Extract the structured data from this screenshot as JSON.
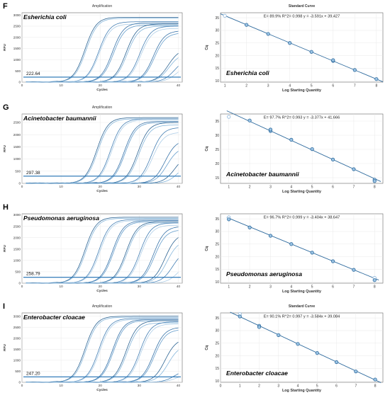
{
  "panels": [
    {
      "letter": "F",
      "organism": "Esherichia coli",
      "amplification": {
        "title": "Amplification",
        "xlabel": "Cycles",
        "ylabel": "RFU",
        "xlim": [
          0,
          41
        ],
        "xticks": [
          0,
          10,
          20,
          30,
          40
        ],
        "ylim": [
          0,
          3100
        ],
        "yticks": [
          0,
          500,
          1000,
          1500,
          2000,
          2500,
          3000
        ],
        "threshold": 222.64,
        "threshold_label": "222.64",
        "curves": [
          {
            "ct": 13.5,
            "plateau": 2900
          },
          {
            "ct": 13.8,
            "plateau": 2850
          },
          {
            "ct": 17.0,
            "plateau": 2700
          },
          {
            "ct": 17.2,
            "plateau": 2600
          },
          {
            "ct": 20.5,
            "plateau": 2650
          },
          {
            "ct": 20.8,
            "plateau": 2550
          },
          {
            "ct": 24.0,
            "plateau": 2600
          },
          {
            "ct": 24.3,
            "plateau": 2500
          },
          {
            "ct": 27.5,
            "plateau": 2500
          },
          {
            "ct": 27.8,
            "plateau": 2400
          },
          {
            "ct": 31.0,
            "plateau": 2300
          },
          {
            "ct": 31.3,
            "plateau": 2200
          },
          {
            "ct": 34.8,
            "plateau": 1500
          },
          {
            "ct": 35.0,
            "plateau": 1300
          },
          {
            "ct": 36.5,
            "plateau": 1100
          },
          {
            "ct": 37.0,
            "plateau": 800
          }
        ]
      },
      "standard_curve": {
        "title": "Standard Curve",
        "xlabel": "Log Starting Quantity",
        "ylabel": "Cq",
        "xlim": [
          0.8,
          8.3
        ],
        "xticks": [
          1,
          2,
          3,
          4,
          5,
          6,
          7,
          8
        ],
        "ylim": [
          9.5,
          37
        ],
        "yticks": [
          10,
          15,
          20,
          25,
          30,
          35
        ],
        "equation": "E= 89.9% R^2= 0.998  y = -3.591x + 39.427",
        "slope": -3.591,
        "intercept": 39.427,
        "line_range": [
          0.8,
          8.3
        ],
        "points": [
          {
            "x": 1,
            "y": 35.8,
            "hollow": true
          },
          {
            "x": 2,
            "y": 32.2
          },
          {
            "x": 3,
            "y": 28.6
          },
          {
            "x": 4,
            "y": 25.0
          },
          {
            "x": 5,
            "y": 21.5
          },
          {
            "x": 6,
            "y": 17.9
          },
          {
            "x": 6,
            "y": 18.2
          },
          {
            "x": 7,
            "y": 14.3
          },
          {
            "x": 8,
            "y": 10.7
          }
        ]
      }
    },
    {
      "letter": "G",
      "organism": "Acinetobacter baumannii",
      "amplification": {
        "title": "Amplification",
        "xlabel": "Cycles",
        "ylabel": "RFU",
        "xlim": [
          0,
          41
        ],
        "xticks": [
          0,
          10,
          20,
          30,
          40
        ],
        "ylim": [
          0,
          2850
        ],
        "yticks": [
          0,
          500,
          1000,
          1500,
          2000,
          2500
        ],
        "threshold": 297.38,
        "threshold_label": "297.38",
        "curves": [
          {
            "ct": 16.5,
            "plateau": 2700
          },
          {
            "ct": 16.8,
            "plateau": 2650
          },
          {
            "ct": 20.0,
            "plateau": 2650
          },
          {
            "ct": 20.3,
            "plateau": 2600
          },
          {
            "ct": 23.5,
            "plateau": 2550
          },
          {
            "ct": 23.8,
            "plateau": 2500
          },
          {
            "ct": 27.0,
            "plateau": 2500
          },
          {
            "ct": 27.3,
            "plateau": 2400
          },
          {
            "ct": 30.5,
            "plateau": 2300
          },
          {
            "ct": 30.8,
            "plateau": 2100
          },
          {
            "ct": 34.0,
            "plateau": 1800
          },
          {
            "ct": 34.5,
            "plateau": 1500
          },
          {
            "ct": 36.5,
            "plateau": 1200
          },
          {
            "ct": 37.5,
            "plateau": 900
          }
        ]
      },
      "standard_curve": {
        "title": "",
        "xlabel": "Log Starting Quantity",
        "ylabel": "Cq",
        "xlim": [
          0.6,
          8.4
        ],
        "xticks": [
          1,
          2,
          3,
          4,
          5,
          6,
          7,
          8
        ],
        "ylim": [
          13,
          37.5
        ],
        "yticks": [
          15,
          20,
          25,
          30,
          35
        ],
        "equation": "E= 97.7% R^2= 0.993  y = -3.377x + 41.666",
        "slope": -3.377,
        "intercept": 41.666,
        "line_range": [
          0.9,
          8.3
        ],
        "points": [
          {
            "x": 1,
            "y": 36.5,
            "hollow": true
          },
          {
            "x": 2,
            "y": 35.2
          },
          {
            "x": 3,
            "y": 31.5
          },
          {
            "x": 3,
            "y": 32.0
          },
          {
            "x": 4,
            "y": 28.4
          },
          {
            "x": 5,
            "y": 25.1
          },
          {
            "x": 6,
            "y": 21.4
          },
          {
            "x": 7,
            "y": 18.0
          },
          {
            "x": 8,
            "y": 14.3
          },
          {
            "x": 8,
            "y": 13.8
          }
        ]
      }
    },
    {
      "letter": "H",
      "organism": "Pseudomonas aeruginosa",
      "amplification": {
        "title": "",
        "xlabel": "Cycles",
        "ylabel": "RFU",
        "xlim": [
          0,
          41
        ],
        "xticks": [
          0,
          10,
          20,
          30,
          40
        ],
        "ylim": [
          0,
          3050
        ],
        "yticks": [
          0,
          500,
          1000,
          1500,
          2000,
          2500,
          3000
        ],
        "threshold": 258.79,
        "threshold_label": "258.79",
        "curves": [
          {
            "ct": 13.5,
            "plateau": 2900
          },
          {
            "ct": 13.8,
            "plateau": 2850
          },
          {
            "ct": 17.0,
            "plateau": 2800
          },
          {
            "ct": 17.3,
            "plateau": 2750
          },
          {
            "ct": 20.5,
            "plateau": 2750
          },
          {
            "ct": 20.8,
            "plateau": 2700
          },
          {
            "ct": 24.0,
            "plateau": 2700
          },
          {
            "ct": 24.3,
            "plateau": 2650
          },
          {
            "ct": 27.5,
            "plateau": 2650
          },
          {
            "ct": 27.8,
            "plateau": 2550
          },
          {
            "ct": 31.0,
            "plateau": 2500
          },
          {
            "ct": 31.3,
            "plateau": 2350
          },
          {
            "ct": 34.0,
            "plateau": 2200
          },
          {
            "ct": 34.5,
            "plateau": 1900
          },
          {
            "ct": 36.0,
            "plateau": 1500
          },
          {
            "ct": 37.5,
            "plateau": 1000
          }
        ]
      },
      "standard_curve": {
        "title": "",
        "xlabel": "Log Starting Quantity",
        "ylabel": "Cq",
        "xlim": [
          0.6,
          8.4
        ],
        "xticks": [
          1,
          2,
          3,
          4,
          5,
          6,
          7,
          8
        ],
        "ylim": [
          9.5,
          37
        ],
        "yticks": [
          10,
          15,
          20,
          25,
          30,
          35
        ],
        "equation": "E= 96.7% R^2= 0.999  y = -3.404x + 38.647",
        "slope": -3.404,
        "intercept": 38.647,
        "line_range": [
          0.9,
          8.2
        ],
        "points": [
          {
            "x": 1,
            "y": 35.6,
            "hollow": true
          },
          {
            "x": 1,
            "y": 34.8
          },
          {
            "x": 2,
            "y": 31.6
          },
          {
            "x": 3,
            "y": 28.3
          },
          {
            "x": 4,
            "y": 25.0
          },
          {
            "x": 5,
            "y": 21.6
          },
          {
            "x": 6,
            "y": 18.2
          },
          {
            "x": 7,
            "y": 14.8
          },
          {
            "x": 8,
            "y": 11.6,
            "hollow": true
          },
          {
            "x": 8,
            "y": 10.7
          }
        ]
      }
    },
    {
      "letter": "I",
      "organism": "Enterobacter cloacae",
      "amplification": {
        "title": "Amplification",
        "xlabel": "Cycles",
        "ylabel": "RFU",
        "xlim": [
          0,
          41
        ],
        "xticks": [
          0,
          10,
          20,
          30,
          40
        ],
        "ylim": [
          0,
          3150
        ],
        "yticks": [
          0,
          500,
          1000,
          1500,
          2000,
          2500,
          3000
        ],
        "threshold": 247.2,
        "threshold_label": "247.20",
        "curves": [
          {
            "ct": 13.5,
            "plateau": 3000
          },
          {
            "ct": 13.8,
            "plateau": 2950
          },
          {
            "ct": 17.0,
            "plateau": 2900
          },
          {
            "ct": 17.3,
            "plateau": 2850
          },
          {
            "ct": 20.5,
            "plateau": 2850
          },
          {
            "ct": 20.8,
            "plateau": 2800
          },
          {
            "ct": 24.0,
            "plateau": 2800
          },
          {
            "ct": 24.3,
            "plateau": 2700
          },
          {
            "ct": 27.5,
            "plateau": 2750
          },
          {
            "ct": 27.8,
            "plateau": 2650
          },
          {
            "ct": 31.0,
            "plateau": 2500
          },
          {
            "ct": 31.3,
            "plateau": 2400
          },
          {
            "ct": 34.0,
            "plateau": 2000
          },
          {
            "ct": 34.8,
            "plateau": 1700
          },
          {
            "ct": 36.5,
            "plateau": 600
          },
          {
            "ct": 37.0,
            "plateau": 400
          }
        ]
      },
      "standard_curve": {
        "title": "Standard Curve",
        "xlabel": "Log Starting Quantity",
        "ylabel": "Cq",
        "xlim": [
          0,
          8.4
        ],
        "xticks": [
          0,
          1,
          2,
          3,
          4,
          5,
          6,
          7,
          8
        ],
        "ylim": [
          9.5,
          37
        ],
        "yticks": [
          10,
          15,
          20,
          25,
          30,
          35
        ],
        "equation": "E= 90.1% R^2= 0.997  y = -3.584x + 39.084",
        "slope": -3.584,
        "intercept": 39.084,
        "line_range": [
          0.5,
          8.3
        ],
        "points": [
          {
            "x": 1,
            "y": 36.5,
            "hollow": true
          },
          {
            "x": 1,
            "y": 35.6
          },
          {
            "x": 2,
            "y": 31.9
          },
          {
            "x": 2,
            "y": 31.4
          },
          {
            "x": 3,
            "y": 28.2
          },
          {
            "x": 4,
            "y": 24.7
          },
          {
            "x": 5,
            "y": 21.1
          },
          {
            "x": 6,
            "y": 17.5
          },
          {
            "x": 7,
            "y": 13.8
          },
          {
            "x": 8,
            "y": 10.6
          }
        ]
      }
    }
  ],
  "chart_data": [
    {
      "type": "line",
      "panel": "F",
      "title": "Amplification",
      "xlabel": "Cycles",
      "ylabel": "RFU",
      "xlim": [
        0,
        41
      ],
      "ylim": [
        0,
        3100
      ],
      "threshold": 222.64,
      "annotation": "Esherichia coli"
    },
    {
      "type": "scatter",
      "panel": "F",
      "title": "Standard Curve",
      "xlabel": "Log Starting Quantity",
      "ylabel": "Cq",
      "equation": "E= 89.9% R^2= 0.998  y = -3.591x + 39.427",
      "x": [
        1,
        2,
        3,
        4,
        5,
        6,
        7,
        8
      ],
      "y": [
        35.8,
        32.2,
        28.6,
        25.0,
        21.5,
        18.0,
        14.3,
        10.7
      ],
      "annotation": "Esherichia coli"
    },
    {
      "type": "line",
      "panel": "G",
      "title": "Amplification",
      "xlabel": "Cycles",
      "ylabel": "RFU",
      "xlim": [
        0,
        41
      ],
      "ylim": [
        0,
        2850
      ],
      "threshold": 297.38,
      "annotation": "Acinetobacter baumannii"
    },
    {
      "type": "scatter",
      "panel": "G",
      "xlabel": "Log Starting Quantity",
      "ylabel": "Cq",
      "equation": "E= 97.7% R^2= 0.993  y = -3.377x + 41.666",
      "x": [
        1,
        2,
        3,
        4,
        5,
        6,
        7,
        8
      ],
      "y": [
        36.5,
        35.2,
        31.8,
        28.4,
        25.1,
        21.4,
        18.0,
        14.0
      ],
      "annotation": "Acinetobacter baumannii"
    },
    {
      "type": "line",
      "panel": "H",
      "xlabel": "Cycles",
      "ylabel": "RFU",
      "xlim": [
        0,
        41
      ],
      "ylim": [
        0,
        3050
      ],
      "threshold": 258.79,
      "annotation": "Pseudomonas aeruginosa"
    },
    {
      "type": "scatter",
      "panel": "H",
      "xlabel": "Log Starting Quantity",
      "ylabel": "Cq",
      "equation": "E= 96.7% R^2= 0.999  y = -3.404x + 38.647",
      "x": [
        1,
        2,
        3,
        4,
        5,
        6,
        7,
        8
      ],
      "y": [
        35.2,
        31.6,
        28.3,
        25.0,
        21.6,
        18.2,
        14.8,
        11.1
      ],
      "annotation": "Pseudomonas aeruginosa"
    },
    {
      "type": "line",
      "panel": "I",
      "title": "Amplification",
      "xlabel": "Cycles",
      "ylabel": "RFU",
      "xlim": [
        0,
        41
      ],
      "ylim": [
        0,
        3150
      ],
      "threshold": 247.2,
      "annotation": "Enterobacter cloacae"
    },
    {
      "type": "scatter",
      "panel": "I",
      "title": "Standard Curve",
      "xlabel": "Log Starting Quantity",
      "ylabel": "Cq",
      "equation": "E= 90.1% R^2= 0.997  y = -3.584x + 39.084",
      "x": [
        1,
        2,
        3,
        4,
        5,
        6,
        7,
        8
      ],
      "y": [
        36.0,
        31.6,
        28.2,
        24.7,
        21.1,
        17.5,
        13.8,
        10.6
      ],
      "annotation": "Enterobacter cloacae"
    }
  ]
}
